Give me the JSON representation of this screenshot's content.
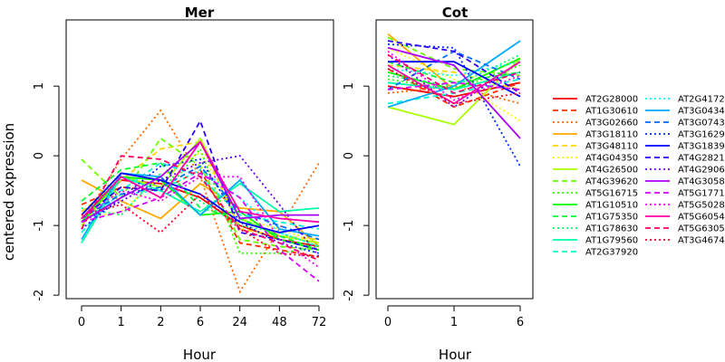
{
  "chart_data": [
    {
      "type": "line",
      "title": "Mer",
      "xlabel": "Hour",
      "ylabel": "centered expression",
      "categories": [
        "0",
        "1",
        "2",
        "6",
        "24",
        "48",
        "72"
      ],
      "ylim": [
        -2.05,
        1.95
      ],
      "yticks": [
        -2,
        -1,
        0,
        1
      ],
      "series": [
        {
          "name": "AT2G28000",
          "values": [
            -0.9,
            -0.35,
            -0.4,
            -0.6,
            -1.0,
            -1.2,
            -1.3
          ]
        },
        {
          "name": "AT1G30610",
          "values": [
            -0.7,
            -0.45,
            -0.5,
            -0.2,
            -1.25,
            -1.35,
            -1.45
          ]
        },
        {
          "name": "AT3G02660",
          "values": [
            -0.95,
            -0.05,
            0.65,
            -0.3,
            -1.95,
            -1.05,
            -0.1
          ]
        },
        {
          "name": "AT3G18110",
          "values": [
            -0.35,
            -0.65,
            -0.9,
            -0.4,
            -0.75,
            -0.8,
            -1.3
          ]
        },
        {
          "name": "AT3G48110",
          "values": [
            -0.8,
            -0.35,
            0.1,
            0.2,
            -1.05,
            -1.15,
            -1.2
          ]
        },
        {
          "name": "AT4G04350",
          "values": [
            -0.9,
            -0.8,
            -0.3,
            0.05,
            -0.9,
            -1.05,
            -1.25
          ]
        },
        {
          "name": "AT4G26500",
          "values": [
            -1.0,
            -0.3,
            -0.45,
            0.25,
            -0.9,
            -1.15,
            -1.25
          ]
        },
        {
          "name": "AT4G39620",
          "values": [
            -0.05,
            -0.6,
            0.25,
            -0.15,
            -1.2,
            -1.3,
            -1.35
          ]
        },
        {
          "name": "AT5G16715",
          "values": [
            -0.85,
            -0.3,
            -0.6,
            0.1,
            -1.4,
            -1.4,
            -1.3
          ]
        },
        {
          "name": "AT1G10510",
          "values": [
            -0.95,
            -0.3,
            -0.35,
            -0.85,
            -0.8,
            -1.2,
            -1.35
          ]
        },
        {
          "name": "AT1G75350",
          "values": [
            -0.65,
            -0.2,
            -0.1,
            -0.75,
            -0.9,
            -1.15,
            -1.35
          ]
        },
        {
          "name": "AT1G78630",
          "values": [
            -0.75,
            -0.85,
            -0.25,
            -0.65,
            -1.0,
            -1.1,
            -1.3
          ]
        },
        {
          "name": "AT1G79560",
          "values": [
            -1.25,
            -0.3,
            -0.5,
            -0.8,
            -0.4,
            -0.8,
            -0.75
          ]
        },
        {
          "name": "AT2G37920",
          "values": [
            -1.1,
            -0.5,
            -0.1,
            -0.3,
            -0.85,
            -0.95,
            -1.05
          ]
        },
        {
          "name": "AT2G4172",
          "values": [
            -0.95,
            -0.55,
            -0.5,
            -0.2,
            -0.6,
            -1.1,
            -1.3
          ]
        },
        {
          "name": "AT3G0434",
          "values": [
            -1.2,
            -0.25,
            -0.3,
            -0.85,
            -0.35,
            -1.05,
            -1.15
          ]
        },
        {
          "name": "AT3G0743",
          "values": [
            -0.9,
            -0.55,
            -0.45,
            -0.15,
            -0.8,
            -1.0,
            -1.2
          ]
        },
        {
          "name": "AT3G1629",
          "values": [
            -1.05,
            -0.6,
            -0.15,
            -0.05,
            -0.95,
            -1.25,
            -1.4
          ]
        },
        {
          "name": "AT3G1839",
          "values": [
            -0.85,
            -0.25,
            -0.35,
            -0.55,
            -0.95,
            -1.1,
            -1.0
          ]
        },
        {
          "name": "AT4G2821",
          "values": [
            -0.9,
            -0.45,
            -0.5,
            0.5,
            -1.1,
            -1.2,
            -1.35
          ]
        },
        {
          "name": "AT4G2906",
          "values": [
            -0.95,
            -0.65,
            -0.35,
            -0.1,
            0.0,
            -0.7,
            -1.45
          ]
        },
        {
          "name": "AT4G3058",
          "values": [
            -0.95,
            -0.6,
            -0.3,
            0.2,
            -0.9,
            -0.85,
            -0.85
          ]
        },
        {
          "name": "AT5G1771",
          "values": [
            -0.95,
            -0.8,
            -0.6,
            -0.25,
            -0.6,
            -1.35,
            -1.8
          ]
        },
        {
          "name": "AT5G5028",
          "values": [
            -0.9,
            -0.5,
            -0.65,
            -0.3,
            -0.3,
            -1.2,
            -1.6
          ]
        },
        {
          "name": "AT5G6054",
          "values": [
            -0.9,
            -0.3,
            -0.6,
            0.2,
            -0.8,
            -0.9,
            -0.95
          ]
        },
        {
          "name": "AT5G6305",
          "values": [
            -1.05,
            0.0,
            -0.05,
            -0.3,
            -1.05,
            -1.25,
            -1.5
          ]
        },
        {
          "name": "AT3G4674",
          "values": [
            -0.85,
            -0.7,
            -1.1,
            -0.55,
            -1.05,
            -1.4,
            -1.45
          ]
        }
      ]
    },
    {
      "type": "line",
      "title": "Cot",
      "xlabel": "Hour",
      "ylabel": "",
      "categories": [
        "0",
        "1",
        "6"
      ],
      "ylim": [
        -2.05,
        1.95
      ],
      "yticks": [
        -2,
        -1,
        0,
        1
      ],
      "series": [
        {
          "name": "AT2G28000",
          "values": [
            1.0,
            0.85,
            1.05
          ]
        },
        {
          "name": "AT1G30610",
          "values": [
            1.25,
            0.7,
            1.05
          ]
        },
        {
          "name": "AT3G02660",
          "values": [
            0.9,
            1.0,
            0.75
          ]
        },
        {
          "name": "AT3G18110",
          "values": [
            1.75,
            0.95,
            1.4
          ]
        },
        {
          "name": "AT3G48110",
          "values": [
            1.3,
            1.2,
            0.95
          ]
        },
        {
          "name": "AT4G04350",
          "values": [
            1.55,
            1.1,
            0.5
          ]
        },
        {
          "name": "AT4G26500",
          "values": [
            0.7,
            0.45,
            1.4
          ]
        },
        {
          "name": "AT4G39620",
          "values": [
            1.7,
            1.25,
            1.15
          ]
        },
        {
          "name": "AT5G16715",
          "values": [
            1.1,
            0.95,
            1.3
          ]
        },
        {
          "name": "AT1G10510",
          "values": [
            1.2,
            0.95,
            1.4
          ]
        },
        {
          "name": "AT1G75350",
          "values": [
            1.35,
            1.05,
            1.2
          ]
        },
        {
          "name": "AT1G78630",
          "values": [
            1.15,
            1.0,
            1.45
          ]
        },
        {
          "name": "AT1G79560",
          "values": [
            1.05,
            0.95,
            1.2
          ]
        },
        {
          "name": "AT2G37920",
          "values": [
            0.75,
            0.9,
            1.1
          ]
        },
        {
          "name": "AT2G4172",
          "values": [
            1.25,
            1.15,
            1.35
          ]
        },
        {
          "name": "AT3G0434",
          "values": [
            0.7,
            1.0,
            1.65
          ]
        },
        {
          "name": "AT3G0743",
          "values": [
            0.95,
            1.5,
            1.1
          ]
        },
        {
          "name": "AT3G1629",
          "values": [
            1.6,
            1.55,
            -0.15
          ]
        },
        {
          "name": "AT3G1839",
          "values": [
            1.35,
            1.35,
            0.85
          ]
        },
        {
          "name": "AT4G2821",
          "values": [
            1.65,
            1.5,
            0.9
          ]
        },
        {
          "name": "AT4G2906",
          "values": [
            1.45,
            0.7,
            1.35
          ]
        },
        {
          "name": "AT4G3058",
          "values": [
            1.55,
            1.3,
            0.25
          ]
        },
        {
          "name": "AT5G1771",
          "values": [
            0.95,
            1.05,
            0.95
          ]
        },
        {
          "name": "AT5G5028",
          "values": [
            1.5,
            0.8,
            1.15
          ]
        },
        {
          "name": "AT5G6054",
          "values": [
            1.3,
            0.75,
            1.35
          ]
        },
        {
          "name": "AT5G6305",
          "values": [
            1.45,
            0.9,
            1.2
          ]
        },
        {
          "name": "AT3G4674",
          "values": [
            1.25,
            0.75,
            0.9
          ]
        }
      ]
    }
  ],
  "legend": {
    "placement": "right",
    "colors": [
      "#ff0000",
      "#ff2b00",
      "#ff6a00",
      "#ffaa00",
      "#ffd500",
      "#ffff00",
      "#aaff00",
      "#6aff00",
      "#2bff00",
      "#00ff00",
      "#00ff2b",
      "#00ff6a",
      "#00ffaa",
      "#00ffd5",
      "#00ffff",
      "#00aaff",
      "#006aff",
      "#002bff",
      "#0000ff",
      "#2b00ff",
      "#6a00ff",
      "#aa00ff",
      "#d500ff",
      "#ff00ff",
      "#ff00aa",
      "#ff006a",
      "#ff002b"
    ],
    "dash_styles": [
      "solid",
      "dashed",
      "dotted"
    ]
  }
}
